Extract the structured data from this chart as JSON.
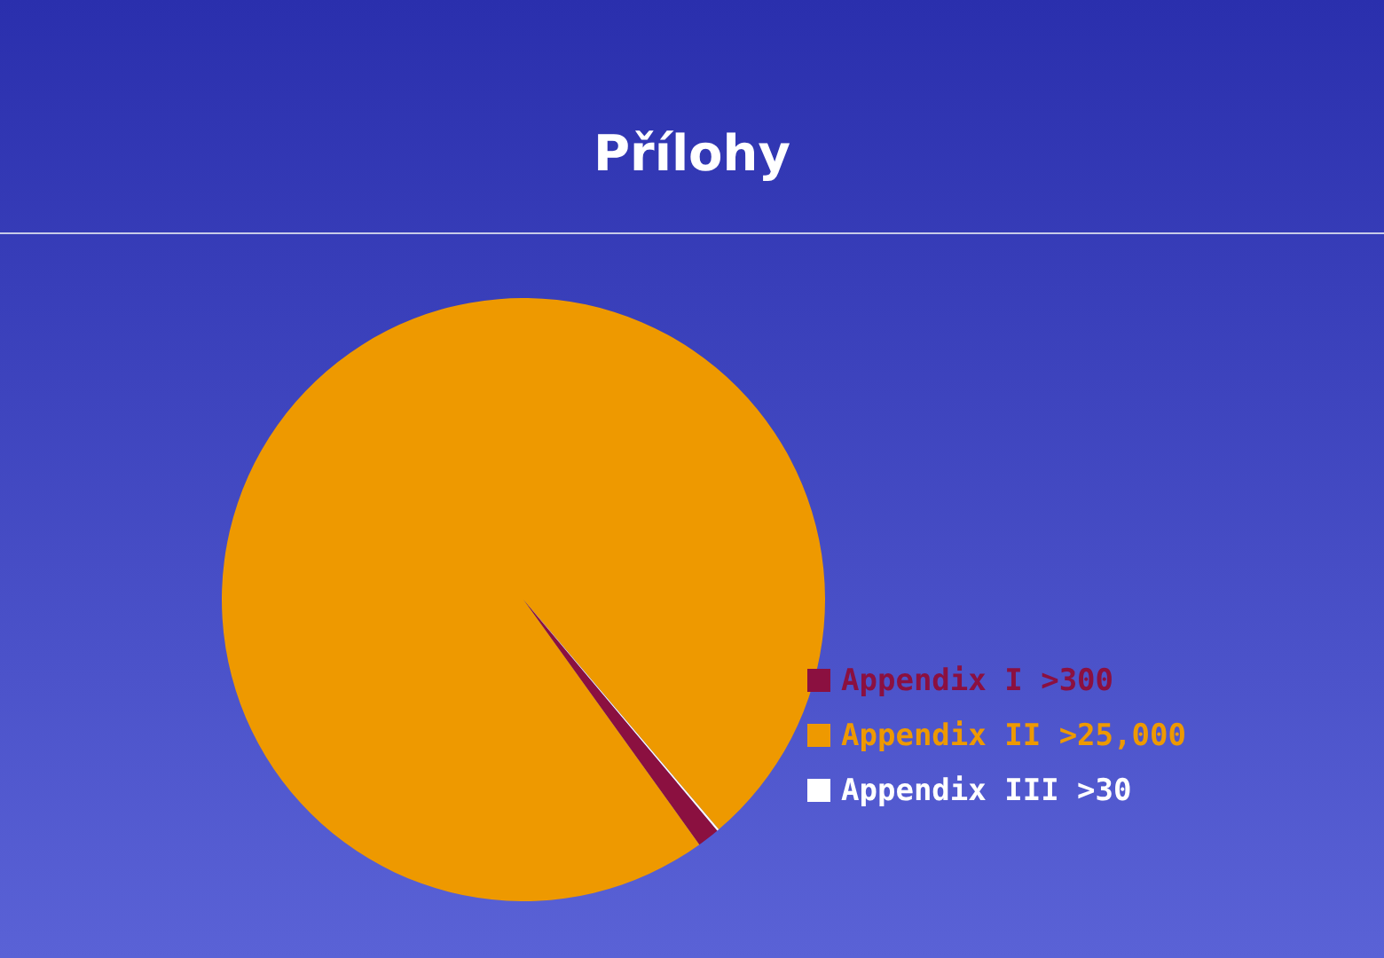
{
  "chart_data": {
    "type": "pie",
    "title": "Přílohy",
    "categories": [
      "Appendix I >300",
      "Appendix II >25,000",
      "Appendix III >30"
    ],
    "values": [
      1.2,
      98.7,
      0.1
    ],
    "colors": [
      "#8b1040",
      "#ee9900",
      "#ffffff"
    ],
    "legend": "right"
  }
}
